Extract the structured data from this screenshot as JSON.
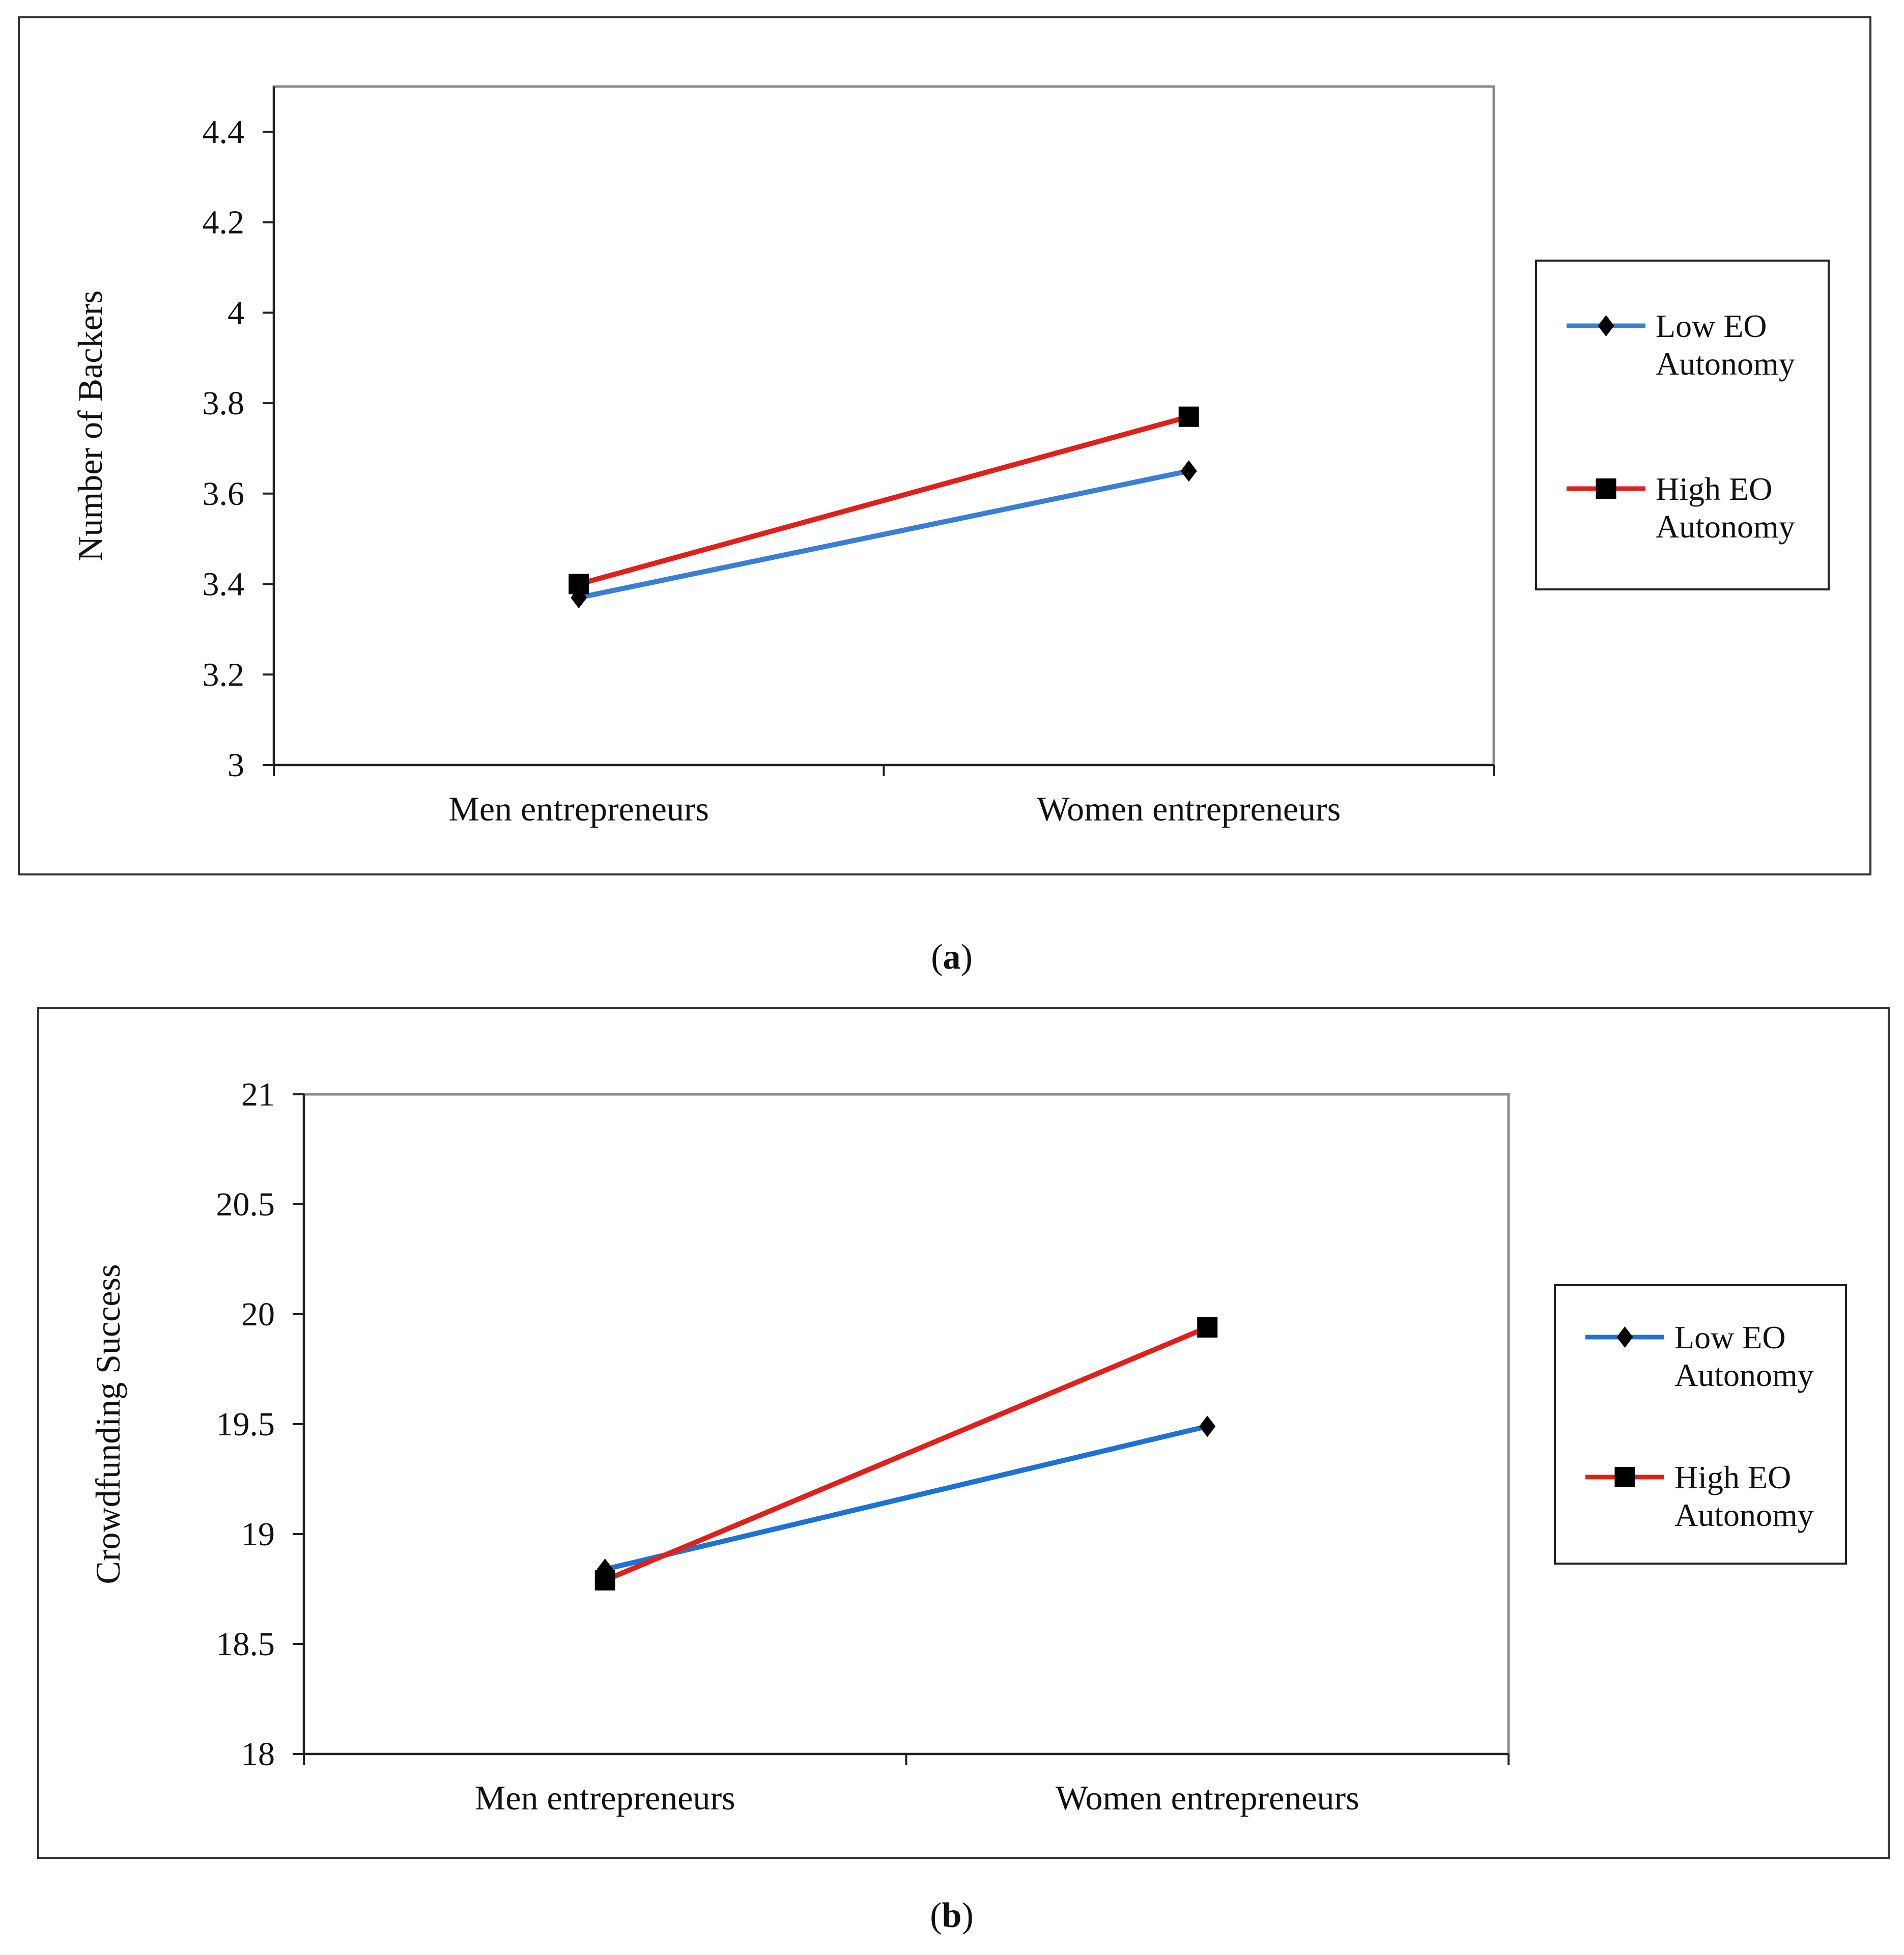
{
  "chart_data": [
    {
      "type": "line",
      "panel_label": "a",
      "title": "",
      "xlabel": "",
      "ylabel": "Number of Backers",
      "categories": [
        "Men entrepreneurs",
        "Women entrepreneurs"
      ],
      "ylim": [
        3,
        4.5
      ],
      "yticks": [
        "3",
        "3.2",
        "3.4",
        "3.6",
        "3.8",
        "4",
        "4.2",
        "4.4"
      ],
      "ytick_values": [
        3,
        3.2,
        3.4,
        3.6,
        3.8,
        4,
        4.2,
        4.4
      ],
      "legend_position": "right",
      "series": [
        {
          "name": "Low EO Autonomy",
          "legend_lines": [
            "Low EO",
            "Autonomy"
          ],
          "values": [
            3.37,
            3.65
          ],
          "color": "#3a7fd5",
          "marker": "diamond"
        },
        {
          "name": "High EO Autonomy",
          "legend_lines": [
            "High EO",
            "Autonomy"
          ],
          "values": [
            3.4,
            3.77
          ],
          "color": "#e0201a",
          "marker": "square"
        }
      ]
    },
    {
      "type": "line",
      "panel_label": "b",
      "title": "",
      "xlabel": "",
      "ylabel": "Crowdfunding Success",
      "categories": [
        "Men entrepreneurs",
        "Women entrepreneurs"
      ],
      "ylim": [
        18,
        21
      ],
      "yticks": [
        "18",
        "18.5",
        "19",
        "19.5",
        "20",
        "20.5",
        "21"
      ],
      "ytick_values": [
        18,
        18.5,
        19,
        19.5,
        20,
        20.5,
        21
      ],
      "legend_position": "right",
      "series": [
        {
          "name": "Low EO Autonomy",
          "legend_lines": [
            "Low EO",
            "Autonomy"
          ],
          "values": [
            18.84,
            19.49
          ],
          "color": "#1e73d2",
          "marker": "diamond"
        },
        {
          "name": "High EO Autonomy",
          "legend_lines": [
            "High EO",
            "Autonomy"
          ],
          "values": [
            18.79,
            19.94
          ],
          "color": "#e0201a",
          "marker": "square"
        }
      ]
    }
  ]
}
